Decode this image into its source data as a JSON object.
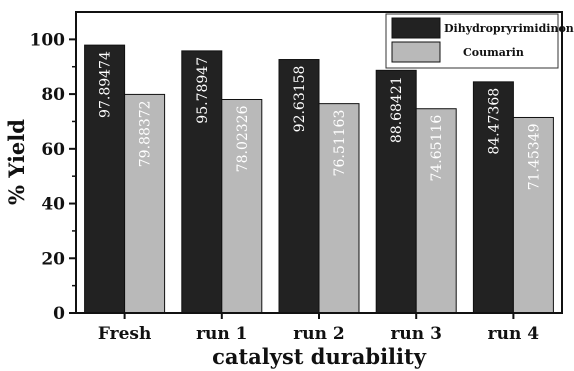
{
  "chart_data": {
    "type": "bar",
    "categories": [
      "Fresh",
      "run 1",
      "run 2",
      "run 3",
      "run 4"
    ],
    "series": [
      {
        "name": "Dihydropryrimidinone",
        "values": [
          97.89474,
          95.78947,
          92.63158,
          88.68421,
          84.47368
        ],
        "labels": [
          "97.89474",
          "95.78947",
          "92.63158",
          "88.68421",
          "84.47368"
        ],
        "color": "#222222"
      },
      {
        "name": "Coumarin",
        "values": [
          79.88372,
          78.02326,
          76.51163,
          74.65116,
          71.45349
        ],
        "labels": [
          "79.88372",
          "78.02326",
          "76.51163",
          "74.65116",
          "71.45349"
        ],
        "color": "#b9b9b9"
      }
    ],
    "xlabel": "catalyst durability",
    "ylabel": "% Yield",
    "ylim": [
      0,
      110
    ],
    "yticks": [
      0,
      20,
      40,
      60,
      80,
      100
    ],
    "legend_position": "top-right",
    "grid": false
  }
}
